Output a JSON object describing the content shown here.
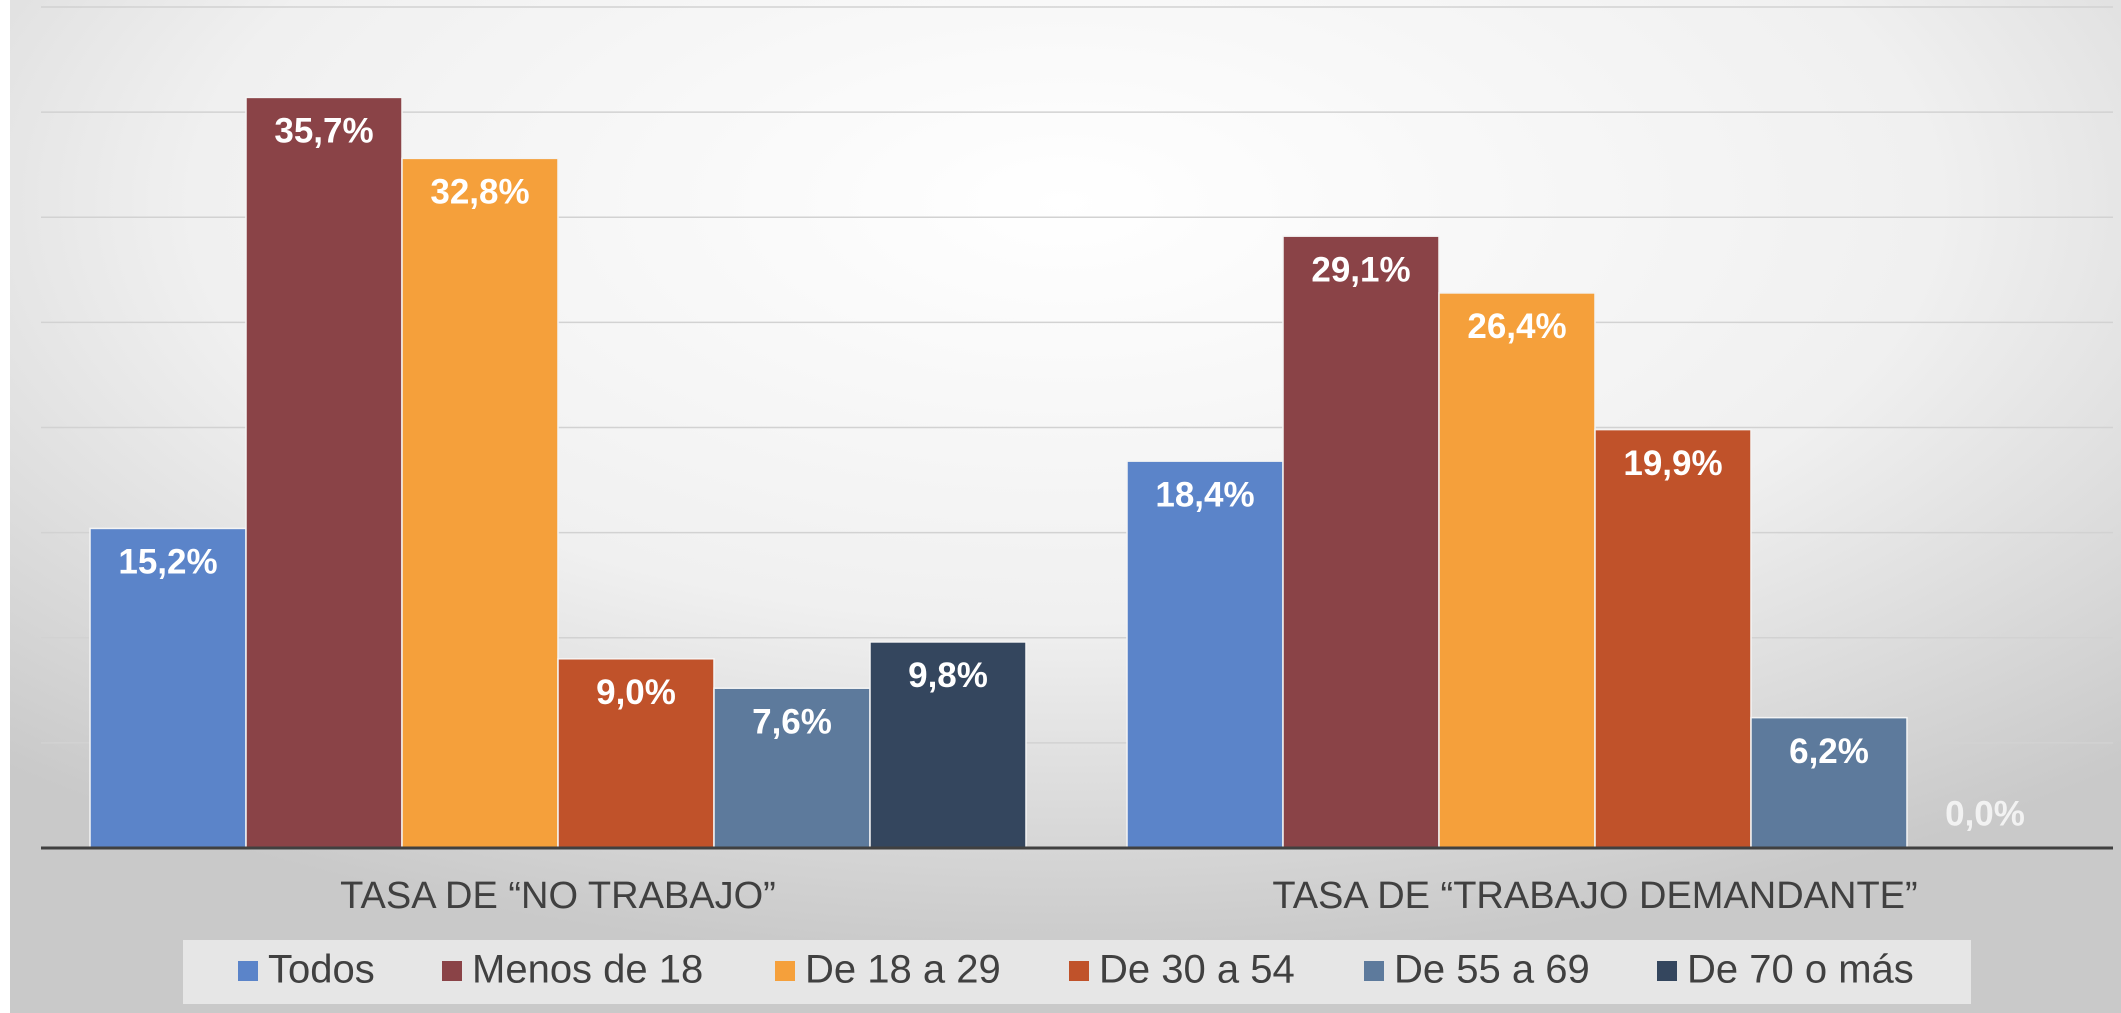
{
  "chart_data": {
    "type": "bar",
    "categories": [
      "TASA DE “NO TRABAJO”",
      "TASA DE “TRABAJO DEMANDANTE”"
    ],
    "series": [
      {
        "name": "Todos",
        "color": "#5b84c9",
        "values": [
          15.2,
          18.4
        ],
        "value_labels": [
          "15,2%",
          "18,4%"
        ]
      },
      {
        "name": "Menos de 18",
        "color": "#8a4347",
        "values": [
          35.7,
          29.1
        ],
        "value_labels": [
          "35,7%",
          "29,1%"
        ]
      },
      {
        "name": "De 18 a 29",
        "color": "#f5a03b",
        "values": [
          32.8,
          26.4
        ],
        "value_labels": [
          "32,8%",
          "26,4%"
        ]
      },
      {
        "name": "De 30 a 54",
        "color": "#c0522a",
        "values": [
          9.0,
          19.9
        ],
        "value_labels": [
          "9,0%",
          "19,9%"
        ]
      },
      {
        "name": "De 55 a 69",
        "color": "#5d7a9c",
        "values": [
          7.6,
          6.2
        ],
        "value_labels": [
          "7,6%",
          "6,2%"
        ]
      },
      {
        "name": "De 70 o más",
        "color": "#34465e",
        "values": [
          9.8,
          0.0
        ],
        "value_labels": [
          "9,8%",
          "0,0%"
        ]
      }
    ],
    "ylim": [
      0,
      40
    ],
    "yticks": [
      0,
      5,
      10,
      15,
      20,
      25,
      30,
      35,
      40
    ],
    "grid": true,
    "legend": "bottom"
  }
}
